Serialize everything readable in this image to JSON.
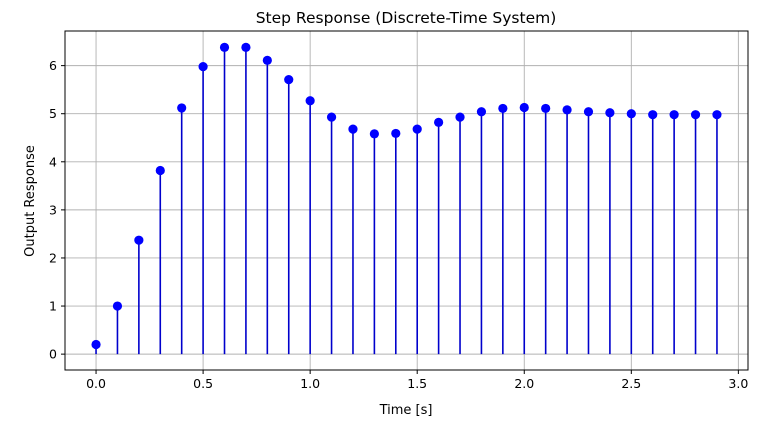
{
  "chart_data": {
    "type": "stem",
    "title": "Step Response (Discrete-Time System)",
    "xlabel": "Time [s]",
    "ylabel": "Output Response",
    "xlim": [
      -0.145,
      3.045
    ],
    "ylim": [
      -0.33,
      6.72
    ],
    "x_ticks": [
      "0.0",
      "0.5",
      "1.0",
      "1.5",
      "2.0",
      "2.5",
      "3.0"
    ],
    "x_tick_values": [
      0,
      0.5,
      1.0,
      1.5,
      2.0,
      2.5,
      3.0
    ],
    "y_ticks": [
      "0",
      "1",
      "2",
      "3",
      "4",
      "5",
      "6"
    ],
    "y_tick_values": [
      0,
      1,
      2,
      3,
      4,
      5,
      6
    ],
    "grid": true,
    "legend": "none",
    "colors": {
      "stem": "#0000cc",
      "marker": "#0000ff",
      "grid": "#b0b0b0",
      "axis": "#000000"
    },
    "series": [
      {
        "x": [
          0.0,
          0.1,
          0.2,
          0.3,
          0.4,
          0.5,
          0.6,
          0.7,
          0.8,
          0.9,
          1.0,
          1.1,
          1.2,
          1.3,
          1.4,
          1.5,
          1.6,
          1.7,
          1.8,
          1.9,
          2.0,
          2.1,
          2.2,
          2.3,
          2.4,
          2.5,
          2.6,
          2.7,
          2.8,
          2.9
        ],
        "values": [
          0.2,
          1.0,
          2.37,
          3.82,
          5.12,
          5.98,
          6.38,
          6.38,
          6.11,
          5.71,
          5.27,
          4.93,
          4.68,
          4.58,
          4.59,
          4.68,
          4.82,
          4.93,
          5.04,
          5.11,
          5.13,
          5.11,
          5.08,
          5.04,
          5.02,
          5.0,
          4.98,
          4.98,
          4.98,
          4.98
        ]
      }
    ]
  }
}
